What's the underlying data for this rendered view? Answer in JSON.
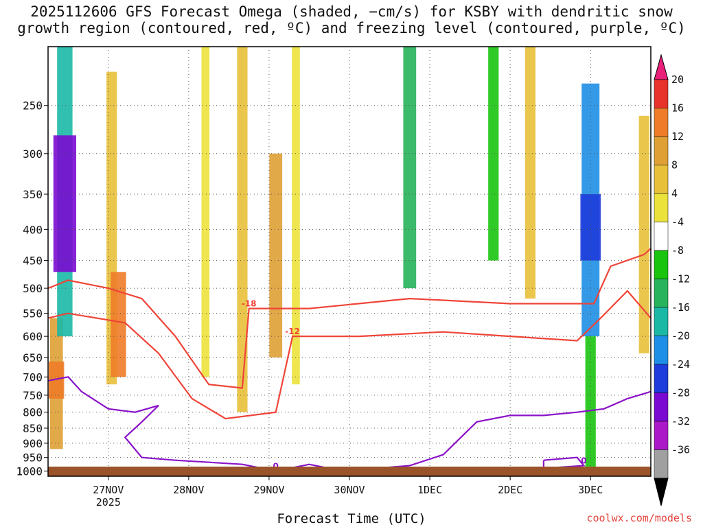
{
  "title_line1": "2025112606 GFS Forecast Omega (shaded, −cm/s) for KSBY with dendritic snow",
  "title_line2": "growth region (contoured, red, ºC) and freezing level (contoured, purple, ºC)",
  "credit": "coolwx.com/models",
  "chart_data": {
    "type": "heatmap",
    "title": "2025112606 GFS Forecast Omega (shaded, −cm/s) for KSBY with dendritic snow growth region (contoured, red, ºC) and freezing level (contoured, purple, ºC)",
    "xlabel": "Forecast Time (UTC)",
    "ylabel": "",
    "x_ticks": [
      "27NOV",
      "28NOV",
      "29NOV",
      "30NOV",
      "1DEC",
      "2DEC",
      "3DEC"
    ],
    "x_tick_year": "2025",
    "x_range_hours": [
      -18,
      162
    ],
    "y_ticks": [
      250,
      300,
      350,
      400,
      450,
      500,
      550,
      600,
      650,
      700,
      750,
      800,
      850,
      900,
      950,
      1000
    ],
    "y_range_hPa": [
      200,
      1020
    ],
    "colorbar": {
      "ticks": [
        20,
        16,
        12,
        8,
        4,
        -4,
        -8,
        -12,
        -16,
        -20,
        -24,
        -28,
        -32,
        -36
      ],
      "colors": [
        "#e8207a",
        "#e8322c",
        "#ee7c28",
        "#dfa035",
        "#e8c03a",
        "#ece23c",
        "#ffffff",
        "#19c40f",
        "#27b35c",
        "#1bb8a6",
        "#1e8fe6",
        "#1e3cdc",
        "#7a0ad2",
        "#aa18c8",
        "#a0a0a0",
        "#000000"
      ]
    },
    "shading": [
      {
        "t": -15.5,
        "p0": 560,
        "p1": 920,
        "v": 12
      },
      {
        "t": -15.5,
        "p0": 660,
        "p1": 760,
        "v": 16
      },
      {
        "t": -13,
        "p0": 200,
        "p1": 600,
        "v": -16
      },
      {
        "t": -13,
        "p0": 280,
        "p1": 470,
        "v": -28
      },
      {
        "t": 1,
        "p0": 220,
        "p1": 720,
        "v": 8
      },
      {
        "t": 3,
        "p0": 470,
        "p1": 700,
        "v": 16
      },
      {
        "t": 29,
        "p0": 200,
        "p1": 700,
        "v": 4
      },
      {
        "t": 40,
        "p0": 200,
        "p1": 800,
        "v": 8
      },
      {
        "t": 50,
        "p0": 300,
        "p1": 650,
        "v": 12
      },
      {
        "t": 56,
        "p0": 200,
        "p1": 720,
        "v": 4
      },
      {
        "t": 90,
        "p0": 200,
        "p1": 500,
        "v": -12
      },
      {
        "t": 115,
        "p0": 200,
        "p1": 450,
        "v": -8
      },
      {
        "t": 126,
        "p0": 200,
        "p1": 520,
        "v": 8
      },
      {
        "t": 144,
        "p0": 230,
        "p1": 600,
        "v": -20
      },
      {
        "t": 144,
        "p0": 350,
        "p1": 450,
        "v": -24
      },
      {
        "t": 144,
        "p0": 600,
        "p1": 1000,
        "v": -8
      },
      {
        "t": 160,
        "p0": 260,
        "p1": 640,
        "v": 8
      }
    ],
    "dendritic_contours": [
      {
        "label": "-18",
        "points": [
          [
            -18,
            500
          ],
          [
            -12,
            485
          ],
          [
            0,
            500
          ],
          [
            10,
            520
          ],
          [
            20,
            600
          ],
          [
            30,
            720
          ],
          [
            40,
            730
          ],
          [
            42,
            540
          ],
          [
            60,
            540
          ],
          [
            90,
            520
          ],
          [
            120,
            530
          ],
          [
            145,
            530
          ],
          [
            150,
            460
          ],
          [
            160,
            440
          ],
          [
            162,
            430
          ]
        ]
      },
      {
        "label": "-12",
        "points": [
          [
            -18,
            560
          ],
          [
            -12,
            550
          ],
          [
            5,
            570
          ],
          [
            15,
            640
          ],
          [
            25,
            760
          ],
          [
            35,
            820
          ],
          [
            50,
            800
          ],
          [
            55,
            600
          ],
          [
            75,
            600
          ],
          [
            100,
            590
          ],
          [
            120,
            600
          ],
          [
            140,
            610
          ],
          [
            147,
            560
          ],
          [
            155,
            505
          ],
          [
            162,
            560
          ]
        ]
      }
    ],
    "freezing_contours": [
      {
        "label": "0",
        "points": [
          [
            -18,
            710
          ],
          [
            -12,
            700
          ],
          [
            -8,
            740
          ],
          [
            0,
            790
          ],
          [
            8,
            800
          ],
          [
            15,
            780
          ],
          [
            10,
            830
          ],
          [
            5,
            880
          ],
          [
            10,
            950
          ],
          [
            20,
            960
          ],
          [
            40,
            975
          ],
          [
            50,
            1000
          ],
          [
            60,
            975
          ],
          [
            70,
            1000
          ],
          [
            90,
            980
          ],
          [
            100,
            940
          ],
          [
            110,
            830
          ],
          [
            120,
            810
          ],
          [
            130,
            810
          ],
          [
            140,
            800
          ],
          [
            148,
            790
          ],
          [
            155,
            760
          ],
          [
            162,
            740
          ]
        ]
      },
      {
        "label": "0",
        "points": [
          [
            130,
            960
          ],
          [
            140,
            950
          ],
          [
            142,
            980
          ],
          [
            130,
            990
          ],
          [
            130,
            960
          ]
        ]
      }
    ]
  }
}
